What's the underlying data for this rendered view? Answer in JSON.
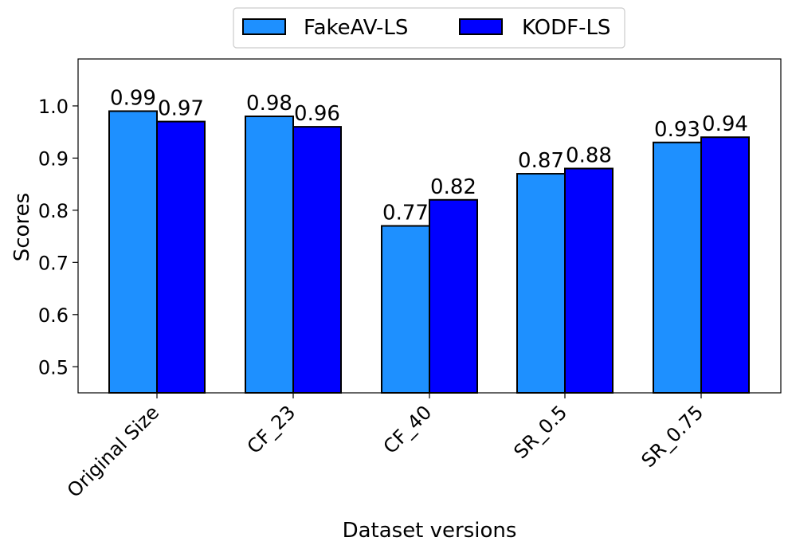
{
  "chart_data": {
    "type": "bar",
    "categories": [
      "Original Size",
      "CF_23",
      "CF_40",
      "SR_0.5",
      "SR_0.75"
    ],
    "series": [
      {
        "name": "FakeAV-LS",
        "color": "#1E90FF",
        "values": [
          0.99,
          0.98,
          0.77,
          0.87,
          0.93
        ],
        "labels": [
          "0.99",
          "0.98",
          "0.77",
          "0.87",
          "0.93"
        ]
      },
      {
        "name": "KODF-LS",
        "color": "#0000FF",
        "values": [
          0.97,
          0.96,
          0.82,
          0.88,
          0.94
        ],
        "labels": [
          "0.97",
          "0.96",
          "0.82",
          "0.88",
          "0.94"
        ]
      }
    ],
    "xlabel": "Dataset versions",
    "ylabel": "Scores",
    "ylim": [
      0.45,
      1.09
    ],
    "yticks": [
      "0.5",
      "0.6",
      "0.7",
      "0.8",
      "0.9",
      "1.0"
    ],
    "grid": false,
    "legend": "top-center, outside plot"
  }
}
